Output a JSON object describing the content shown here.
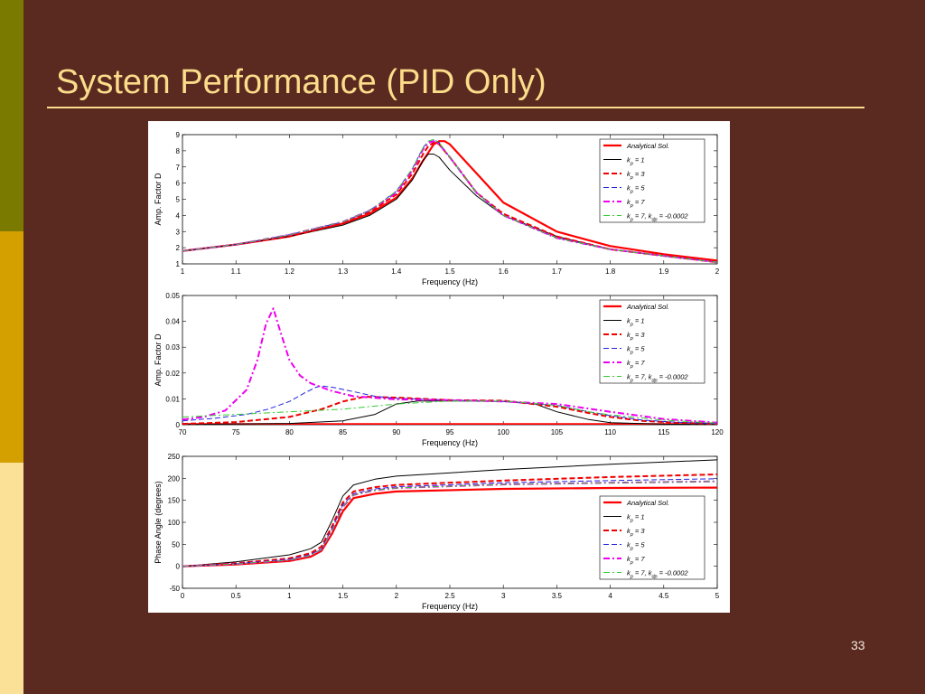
{
  "slide": {
    "title": "System Performance (PID Only)",
    "page_number": "33",
    "colors": {
      "background": "#5a2a20",
      "title": "#fbdc8a",
      "bar_top": "#7a7a00",
      "bar_mid": "#d4a000",
      "bar_bottom": "#fbe098"
    }
  },
  "chart_data": [
    {
      "type": "line",
      "xlabel": "Frequency (Hz)",
      "ylabel": "Amp. Factor  D",
      "xlim": [
        1,
        2
      ],
      "ylim": [
        1,
        9
      ],
      "xticks": [
        "1",
        "1.1",
        "1.2",
        "1.3",
        "1.4",
        "1.5",
        "1.6",
        "1.7",
        "1.8",
        "1.9",
        "2"
      ],
      "yticks": [
        "1",
        "2",
        "3",
        "4",
        "5",
        "6",
        "7",
        "8",
        "9"
      ],
      "legend_position": "top-right",
      "series": [
        {
          "name": "Analytical Sol.",
          "sub": "",
          "name2": "",
          "color": "#ff0000",
          "style": "solid",
          "width": 2.2,
          "x": [
            1,
            1.1,
            1.2,
            1.3,
            1.35,
            1.4,
            1.43,
            1.45,
            1.47,
            1.48,
            1.49,
            1.5,
            1.55,
            1.6,
            1.7,
            1.8,
            1.9,
            2
          ],
          "y": [
            1.8,
            2.2,
            2.7,
            3.5,
            4.1,
            5.1,
            6.3,
            7.4,
            8.4,
            8.6,
            8.6,
            8.4,
            6.6,
            4.8,
            3.0,
            2.1,
            1.6,
            1.2
          ]
        },
        {
          "name": "k",
          "sub": "p",
          "name2": " = 1",
          "color": "#000000",
          "style": "solid",
          "width": 1,
          "x": [
            1,
            1.1,
            1.2,
            1.3,
            1.35,
            1.4,
            1.43,
            1.45,
            1.46,
            1.47,
            1.48,
            1.5,
            1.55,
            1.6,
            1.7,
            1.8,
            1.9,
            2
          ],
          "y": [
            1.8,
            2.2,
            2.7,
            3.4,
            4.0,
            5.0,
            6.2,
            7.4,
            7.8,
            7.8,
            7.6,
            6.8,
            5.2,
            4.0,
            2.7,
            1.9,
            1.5,
            1.1
          ]
        },
        {
          "name": "k",
          "sub": "p",
          "name2": " = 3",
          "color": "#ee0000",
          "style": "dash",
          "width": 2,
          "x": [
            1,
            1.1,
            1.2,
            1.3,
            1.35,
            1.4,
            1.43,
            1.45,
            1.46,
            1.47,
            1.48,
            1.5,
            1.55,
            1.6,
            1.7,
            1.8,
            1.9,
            2
          ],
          "y": [
            1.8,
            2.2,
            2.7,
            3.5,
            4.2,
            5.3,
            6.6,
            7.8,
            8.3,
            8.5,
            8.4,
            7.6,
            5.4,
            4.1,
            2.7,
            1.9,
            1.5,
            1.1
          ]
        },
        {
          "name": "k",
          "sub": "p",
          "name2": " = 5",
          "color": "#2222dd",
          "style": "dash",
          "width": 1,
          "x": [
            1,
            1.1,
            1.2,
            1.3,
            1.35,
            1.4,
            1.43,
            1.45,
            1.46,
            1.47,
            1.48,
            1.5,
            1.55,
            1.6,
            1.7,
            1.8,
            1.9,
            2
          ],
          "y": [
            1.8,
            2.2,
            2.8,
            3.6,
            4.3,
            5.5,
            6.9,
            8.2,
            8.6,
            8.7,
            8.5,
            7.6,
            5.4,
            4.0,
            2.6,
            1.9,
            1.5,
            1.1
          ]
        },
        {
          "name": "k",
          "sub": "p",
          "name2": " = 7",
          "color": "#ee00ee",
          "style": "dashdot",
          "width": 2,
          "x": [
            1,
            1.1,
            1.2,
            1.3,
            1.35,
            1.4,
            1.43,
            1.45,
            1.46,
            1.47,
            1.48,
            1.5,
            1.55,
            1.6,
            1.7,
            1.8,
            1.9,
            2
          ],
          "y": [
            1.8,
            2.2,
            2.8,
            3.6,
            4.3,
            5.4,
            6.8,
            8.1,
            8.5,
            8.6,
            8.4,
            7.6,
            5.4,
            4.0,
            2.6,
            1.9,
            1.5,
            1.1
          ]
        },
        {
          "name": "k",
          "sub": "p",
          "name2": " = 7,  k",
          "sub2": "dp",
          "name3": " = -0.0002",
          "color": "#33cc33",
          "style": "dashdot",
          "width": 1,
          "x": [
            1,
            1.1,
            1.2,
            1.3,
            1.35,
            1.4,
            1.43,
            1.45,
            1.46,
            1.47,
            1.48,
            1.5,
            1.55,
            1.6,
            1.7,
            1.8,
            1.9,
            2
          ],
          "y": [
            1.8,
            2.2,
            2.8,
            3.6,
            4.3,
            5.5,
            6.9,
            8.2,
            8.6,
            8.7,
            8.5,
            7.6,
            5.4,
            4.0,
            2.6,
            1.9,
            1.5,
            1.1
          ]
        }
      ]
    },
    {
      "type": "line",
      "xlabel": "Frequency (Hz)",
      "ylabel": "Amp. Factor  D",
      "xlim": [
        70,
        120
      ],
      "ylim": [
        0,
        0.05
      ],
      "xticks": [
        "70",
        "75",
        "80",
        "85",
        "90",
        "95",
        "100",
        "105",
        "110",
        "115",
        "120"
      ],
      "yticks": [
        "0",
        "0.01",
        "0.02",
        "0.03",
        "0.04",
        "0.05"
      ],
      "legend_position": "top-right",
      "series": [
        {
          "name": "Analytical Sol.",
          "sub": "",
          "name2": "",
          "color": "#ff0000",
          "style": "solid",
          "width": 2.2,
          "x": [
            70,
            120
          ],
          "y": [
            0.0002,
            0.0002
          ]
        },
        {
          "name": "k",
          "sub": "p",
          "name2": " = 1",
          "color": "#000000",
          "style": "solid",
          "width": 1,
          "x": [
            70,
            80,
            85,
            88,
            90,
            92,
            95,
            100,
            103,
            105,
            108,
            110,
            115,
            120
          ],
          "y": [
            0.0001,
            0.0005,
            0.0015,
            0.004,
            0.008,
            0.0092,
            0.0092,
            0.009,
            0.008,
            0.005,
            0.002,
            0.0008,
            0.0002,
            0.0001
          ]
        },
        {
          "name": "k",
          "sub": "p",
          "name2": " = 3",
          "color": "#ee0000",
          "style": "dash",
          "width": 2,
          "x": [
            70,
            75,
            80,
            83,
            85,
            87,
            90,
            95,
            100,
            105,
            108,
            110,
            113,
            116,
            120
          ],
          "y": [
            0.0003,
            0.001,
            0.003,
            0.006,
            0.009,
            0.0108,
            0.0105,
            0.0095,
            0.0093,
            0.007,
            0.0045,
            0.003,
            0.0015,
            0.0008,
            0.0003
          ]
        },
        {
          "name": "k",
          "sub": "p",
          "name2": " = 5",
          "color": "#2222dd",
          "style": "dash",
          "width": 1,
          "x": [
            70,
            73,
            76,
            78,
            80,
            81.5,
            82.5,
            83,
            84,
            86,
            88,
            90,
            95,
            100,
            105,
            108,
            110,
            113,
            116,
            120
          ],
          "y": [
            0.0015,
            0.0025,
            0.004,
            0.006,
            0.009,
            0.0125,
            0.0145,
            0.015,
            0.0145,
            0.0128,
            0.011,
            0.0102,
            0.0095,
            0.009,
            0.0075,
            0.005,
            0.0035,
            0.0018,
            0.001,
            0.0004
          ]
        },
        {
          "name": "k",
          "sub": "p",
          "name2": " = 7",
          "color": "#ee00ee",
          "style": "dashdot",
          "width": 2,
          "x": [
            70,
            72,
            74,
            76,
            77,
            77.8,
            78.5,
            79,
            80,
            81,
            82,
            84,
            86,
            90,
            95,
            100,
            105,
            110,
            115,
            120
          ],
          "y": [
            0.002,
            0.003,
            0.0055,
            0.0135,
            0.025,
            0.039,
            0.045,
            0.038,
            0.025,
            0.019,
            0.016,
            0.013,
            0.011,
            0.0098,
            0.0095,
            0.009,
            0.008,
            0.005,
            0.0022,
            0.0008
          ]
        },
        {
          "name": "k",
          "sub": "p",
          "name2": " = 7,  k",
          "sub2": "dp",
          "name3": " = -0.0002",
          "color": "#33cc33",
          "style": "dashdot",
          "width": 1,
          "x": [
            70,
            75,
            80,
            85,
            90,
            95,
            100,
            105,
            108,
            110,
            115,
            120
          ],
          "y": [
            0.003,
            0.004,
            0.005,
            0.006,
            0.008,
            0.0092,
            0.0092,
            0.0075,
            0.005,
            0.0038,
            0.0018,
            0.0006
          ]
        }
      ]
    },
    {
      "type": "line",
      "xlabel": "Frequency (Hz)",
      "ylabel": "Phase Angle (degrees)",
      "xlim": [
        0,
        5
      ],
      "ylim": [
        -50,
        250
      ],
      "xticks": [
        "0",
        "0.5",
        "1",
        "1.5",
        "2",
        "2.5",
        "3",
        "3.5",
        "4",
        "4.5",
        "5"
      ],
      "yticks": [
        "-50",
        "0",
        "50",
        "100",
        "150",
        "200",
        "250"
      ],
      "legend_position": "bottom-right",
      "series": [
        {
          "name": "Analytical Sol.",
          "sub": "",
          "name2": "",
          "color": "#ff0000",
          "style": "solid",
          "width": 2.2,
          "x": [
            0,
            0.5,
            1,
            1.2,
            1.3,
            1.4,
            1.5,
            1.6,
            1.8,
            2,
            3,
            4,
            5
          ],
          "y": [
            0,
            4,
            12,
            22,
            35,
            75,
            125,
            155,
            165,
            170,
            176,
            178,
            179
          ]
        },
        {
          "name": "k",
          "sub": "p",
          "name2": " = 1",
          "color": "#000000",
          "style": "solid",
          "width": 1,
          "x": [
            0,
            0.5,
            1,
            1.2,
            1.3,
            1.4,
            1.5,
            1.6,
            1.8,
            2,
            3,
            4,
            5
          ],
          "y": [
            0,
            10,
            26,
            40,
            55,
            105,
            160,
            185,
            198,
            205,
            220,
            232,
            242
          ]
        },
        {
          "name": "k",
          "sub": "p",
          "name2": " = 3",
          "color": "#ee0000",
          "style": "dash",
          "width": 2,
          "x": [
            0,
            0.5,
            1,
            1.2,
            1.3,
            1.4,
            1.5,
            1.6,
            1.8,
            2,
            3,
            4,
            5
          ],
          "y": [
            0,
            7,
            18,
            30,
            45,
            92,
            145,
            170,
            180,
            185,
            195,
            203,
            209
          ]
        },
        {
          "name": "k",
          "sub": "p",
          "name2": " = 5",
          "color": "#2222dd",
          "style": "dash",
          "width": 1,
          "x": [
            0,
            0.5,
            1,
            1.2,
            1.3,
            1.4,
            1.5,
            1.6,
            1.8,
            2,
            3,
            4,
            5
          ],
          "y": [
            0,
            6,
            16,
            27,
            40,
            87,
            140,
            165,
            176,
            181,
            190,
            195,
            199
          ]
        },
        {
          "name": "k",
          "sub": "p",
          "name2": " = 7",
          "color": "#ee00ee",
          "style": "dashdot",
          "width": 2,
          "x": [
            0,
            0.5,
            1,
            1.2,
            1.3,
            1.4,
            1.5,
            1.6,
            1.8,
            2,
            3,
            4,
            5
          ],
          "y": [
            0,
            5,
            14,
            25,
            38,
            82,
            135,
            162,
            173,
            178,
            186,
            190,
            193
          ]
        },
        {
          "name": "k",
          "sub": "p",
          "name2": " = 7,  k",
          "sub2": "dp",
          "name3": " = -0.0002",
          "color": "#33cc33",
          "style": "dashdot",
          "width": 1,
          "x": [
            0,
            0.5,
            1,
            1.2,
            1.3,
            1.4,
            1.5,
            1.6,
            1.8,
            2,
            3,
            4,
            5
          ],
          "y": [
            0,
            5,
            14,
            25,
            38,
            82,
            135,
            162,
            173,
            178,
            186,
            190,
            193
          ]
        }
      ]
    }
  ]
}
